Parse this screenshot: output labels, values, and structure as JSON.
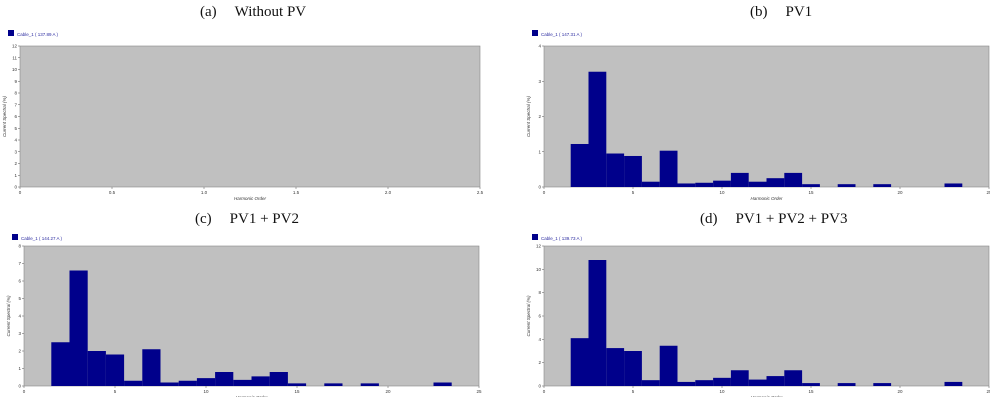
{
  "chart_data": [
    {
      "type": "bar",
      "panel_label": "(a)",
      "title": "Without PV",
      "legend": "Cable_1 ( 137.89 A )",
      "ylabel": "Current Spectral (%)",
      "xlabel": "Harmonic Order",
      "xlim": [
        0,
        2.5
      ],
      "ylim": [
        0,
        12
      ],
      "xticks": [
        "0",
        "0.5",
        "1.0",
        "1.5",
        "2.0",
        "2.5"
      ],
      "yticks": [
        "0",
        "1",
        "2",
        "3",
        "4",
        "5",
        "6",
        "7",
        "8",
        "9",
        "10",
        "11",
        "12"
      ],
      "x": [],
      "values": [],
      "colors": {
        "bar": "#00008b",
        "plot_bg": "#c0c0c0"
      }
    },
    {
      "type": "bar",
      "panel_label": "(b)",
      "title": "PV1",
      "legend": "Cable_1 ( 147.31 A )",
      "ylabel": "Current Spectral (%)",
      "xlabel": "Harmonic Order",
      "xlim": [
        0,
        25
      ],
      "ylim": [
        0,
        4
      ],
      "xticks": [
        "0",
        "5",
        "10",
        "15",
        "20",
        "25"
      ],
      "yticks": [
        "0",
        "1",
        "2",
        "3",
        "4"
      ],
      "x": [
        2,
        3,
        4,
        5,
        6,
        7,
        8,
        9,
        10,
        11,
        12,
        13,
        14,
        15,
        17,
        19,
        23
      ],
      "values": [
        1.22,
        3.27,
        0.95,
        0.88,
        0.15,
        1.03,
        0.1,
        0.12,
        0.18,
        0.4,
        0.15,
        0.25,
        0.4,
        0.08,
        0.08,
        0.08,
        0.1
      ],
      "colors": {
        "bar": "#00008b",
        "plot_bg": "#c0c0c0"
      }
    },
    {
      "type": "bar",
      "panel_label": "(c)",
      "title": "PV1 + PV2",
      "legend": "Cable_1 ( 144.27 A )",
      "ylabel": "Current Spectral (%)",
      "xlabel": "Harmonic Order",
      "xlim": [
        0,
        25
      ],
      "ylim": [
        0,
        8
      ],
      "xticks": [
        "0",
        "5",
        "10",
        "15",
        "20",
        "25"
      ],
      "yticks": [
        "0",
        "1",
        "2",
        "3",
        "4",
        "5",
        "6",
        "7",
        "8"
      ],
      "x": [
        2,
        3,
        4,
        5,
        6,
        7,
        8,
        9,
        10,
        11,
        12,
        13,
        14,
        15,
        17,
        19,
        23
      ],
      "values": [
        2.5,
        6.6,
        2.0,
        1.8,
        0.3,
        2.1,
        0.2,
        0.3,
        0.45,
        0.8,
        0.35,
        0.55,
        0.8,
        0.15,
        0.15,
        0.15,
        0.2
      ],
      "colors": {
        "bar": "#00008b",
        "plot_bg": "#c0c0c0"
      }
    },
    {
      "type": "bar",
      "panel_label": "(d)",
      "title": "PV1 + PV2 + PV3",
      "legend": "Cable_1 ( 139.73 A )",
      "ylabel": "Current Spectral (%)",
      "xlabel": "Harmonic Order",
      "xlim": [
        0,
        25
      ],
      "ylim": [
        0,
        12
      ],
      "xticks": [
        "0",
        "5",
        "10",
        "15",
        "20",
        "25"
      ],
      "yticks": [
        "0",
        "2",
        "4",
        "6",
        "8",
        "10",
        "12"
      ],
      "x": [
        2,
        3,
        4,
        5,
        6,
        7,
        8,
        9,
        10,
        11,
        12,
        13,
        14,
        15,
        17,
        19,
        23
      ],
      "values": [
        4.1,
        10.8,
        3.25,
        3.0,
        0.5,
        3.45,
        0.35,
        0.5,
        0.7,
        1.35,
        0.55,
        0.85,
        1.35,
        0.25,
        0.25,
        0.25,
        0.35
      ],
      "colors": {
        "bar": "#00008b",
        "plot_bg": "#c0c0c0"
      }
    }
  ]
}
